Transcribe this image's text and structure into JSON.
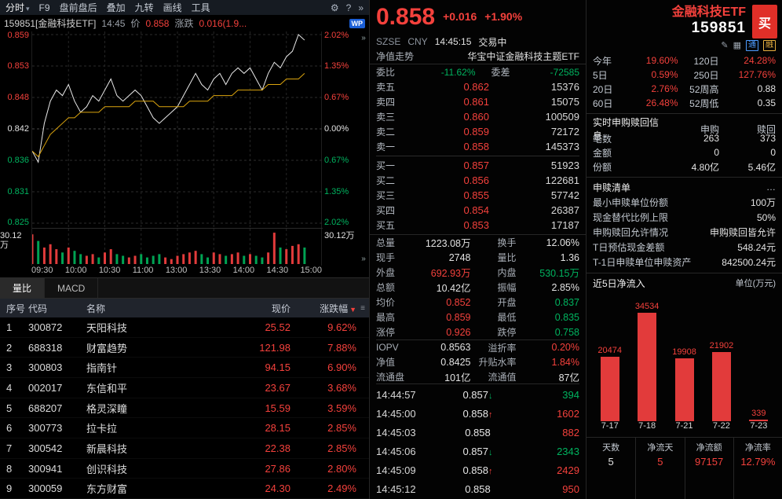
{
  "colors": {
    "up_red": "#f4413c",
    "down_green": "#00b35f",
    "yellow": "#d9a512",
    "accent_blue": "#1b5fd6",
    "toolbar_bg": "#161b22",
    "background": "#000000"
  },
  "glyphs": {
    "caret_down": "▾",
    "gear": "⚙",
    "help": "?",
    "chevrons": "»",
    "pencil": "✎",
    "grid": "▦",
    "grip": "≡",
    "sort_down": "▼",
    "dots": "…"
  },
  "toolbar": {
    "mode_label": "分时",
    "items": [
      "F9",
      "盘前盘后",
      "叠加",
      "九转",
      "画线",
      "工具"
    ]
  },
  "chart_header": {
    "code_name": "159851[金融科技ETF]",
    "time": "14:45",
    "price_label": "价",
    "price": "0.858",
    "change_label": "涨跌",
    "change": "0.016(1.9...",
    "logo": "WP"
  },
  "axis": {
    "left": [
      "0.859",
      "0.853",
      "0.848",
      "0.842",
      "0.836",
      "0.831",
      "0.825"
    ],
    "right": [
      "2.02%",
      "1.35%",
      "0.67%",
      "0.00%",
      "0.67%",
      "1.35%",
      "2.02%"
    ],
    "vol_left": "30.12万",
    "vol_right": "30.12万",
    "x": [
      "09:30",
      "10:00",
      "10:30",
      "11:00",
      "13:00",
      "13:30",
      "14:00",
      "14:30",
      "15:00"
    ]
  },
  "tabs": [
    {
      "label": "量比"
    },
    {
      "label": "MACD"
    }
  ],
  "stock_table": {
    "headers": {
      "seq": "序号",
      "code": "代码",
      "name": "名称",
      "price": "现价",
      "pct": "涨跌幅",
      "sort": "▼"
    },
    "rows": [
      {
        "seq": "1",
        "code": "300872",
        "name": "天阳科技",
        "price": "25.52",
        "pct": "9.62%"
      },
      {
        "seq": "2",
        "code": "688318",
        "name": "财富趋势",
        "price": "121.98",
        "pct": "7.88%"
      },
      {
        "seq": "3",
        "code": "300803",
        "name": "指南针",
        "price": "94.15",
        "pct": "6.90%"
      },
      {
        "seq": "4",
        "code": "002017",
        "name": "东信和平",
        "price": "23.67",
        "pct": "3.68%"
      },
      {
        "seq": "5",
        "code": "688207",
        "name": "格灵深瞳",
        "price": "15.59",
        "pct": "3.59%"
      },
      {
        "seq": "6",
        "code": "300773",
        "name": "拉卡拉",
        "price": "28.15",
        "pct": "2.85%"
      },
      {
        "seq": "7",
        "code": "300542",
        "name": "新晨科技",
        "price": "22.38",
        "pct": "2.85%"
      },
      {
        "seq": "8",
        "code": "300941",
        "name": "创识科技",
        "price": "27.86",
        "pct": "2.80%"
      },
      {
        "seq": "9",
        "code": "300059",
        "name": "东方财富",
        "price": "24.30",
        "pct": "2.49%"
      }
    ]
  },
  "quote": {
    "price": "0.858",
    "change": "+0.016",
    "pct": "+1.90%",
    "exchange": "SZSE",
    "currency": "CNY",
    "time": "14:45:15",
    "status": "交易中",
    "nav_label": "净值走势",
    "fund_name": "华宝中证金融科技主题ETF",
    "weibi_label": "委比",
    "weibi": "-11.62%",
    "weicha_label": "委差",
    "weicha": "-72585"
  },
  "order_book": {
    "asks": [
      {
        "label": "卖五",
        "price": "0.862",
        "size": "15376"
      },
      {
        "label": "卖四",
        "price": "0.861",
        "size": "15075"
      },
      {
        "label": "卖三",
        "price": "0.860",
        "size": "100509"
      },
      {
        "label": "卖二",
        "price": "0.859",
        "size": "72172"
      },
      {
        "label": "卖一",
        "price": "0.858",
        "size": "145373"
      }
    ],
    "bids": [
      {
        "label": "买一",
        "price": "0.857",
        "size": "51923"
      },
      {
        "label": "买二",
        "price": "0.856",
        "size": "122681"
      },
      {
        "label": "买三",
        "price": "0.855",
        "size": "57742"
      },
      {
        "label": "买四",
        "price": "0.854",
        "size": "26387"
      },
      {
        "label": "买五",
        "price": "0.853",
        "size": "17187"
      }
    ]
  },
  "stats": {
    "rows": [
      {
        "l1": "总量",
        "v1": "1223.08万",
        "l2": "换手",
        "v2": "12.06%"
      },
      {
        "l1": "现手",
        "v1": "2748",
        "l2": "量比",
        "v2": "1.36"
      },
      {
        "l1": "外盘",
        "v1": "692.93万",
        "l2": "内盘",
        "v2": "530.15万"
      },
      {
        "l1": "总额",
        "v1": "10.42亿",
        "l2": "振幅",
        "v2": "2.85%"
      },
      {
        "l1": "均价",
        "v1": "0.852",
        "l2": "开盘",
        "v2": "0.837"
      },
      {
        "l1": "最高",
        "v1": "0.859",
        "l2": "最低",
        "v2": "0.835"
      },
      {
        "l1": "涨停",
        "v1": "0.926",
        "l2": "跌停",
        "v2": "0.758"
      },
      {
        "l1": "IOPV",
        "v1": "0.8563",
        "l2": "溢折率",
        "v2": "0.20%"
      },
      {
        "l1": "净值",
        "v1": "0.8425",
        "l2": "升贴水率",
        "v2": "1.84%"
      },
      {
        "l1": "流通盘",
        "v1": "101亿",
        "l2": "流通值",
        "v2": "87亿"
      }
    ]
  },
  "ticks": {
    "rows": [
      {
        "time": "14:44:57",
        "price": "0.857",
        "arrow": "↓",
        "vol": "394"
      },
      {
        "time": "14:45:00",
        "price": "0.858",
        "arrow": "↑",
        "vol": "1602"
      },
      {
        "time": "14:45:03",
        "price": "0.858",
        "arrow": "",
        "vol": "882"
      },
      {
        "time": "14:45:06",
        "price": "0.857",
        "arrow": "↓",
        "vol": "2343"
      },
      {
        "time": "14:45:09",
        "price": "0.858",
        "arrow": "↑",
        "vol": "2429"
      },
      {
        "time": "14:45:12",
        "price": "0.858",
        "arrow": "",
        "vol": "950"
      }
    ]
  },
  "etf": {
    "name": "金融科技ETF",
    "code": "159851",
    "buy_label": "买",
    "badge1": "通",
    "badge2": "融"
  },
  "perf": {
    "rows": [
      {
        "l1": "今年",
        "v1": "19.60%",
        "l2": "120日",
        "v2": "24.28%"
      },
      {
        "l1": "5日",
        "v1": "0.59%",
        "l2": "250日",
        "v2": "127.76%"
      },
      {
        "l1": "20日",
        "v1": "2.76%",
        "l2": "52周高",
        "v2": "0.88"
      },
      {
        "l1": "60日",
        "v1": "26.48%",
        "l2": "52周低",
        "v2": "0.35"
      }
    ]
  },
  "subscription": {
    "title": "实时申购赎回信息",
    "col_buy": "申购",
    "col_sell": "赎回",
    "rows": [
      {
        "label": "笔数",
        "buy": "263",
        "sell": "373"
      },
      {
        "label": "金额",
        "buy": "0",
        "sell": "0"
      },
      {
        "label": "份额",
        "buy": "4.80亿",
        "sell": "5.46亿"
      }
    ]
  },
  "redeem": {
    "title": "申赎清单",
    "more": "…",
    "rows": [
      {
        "label": "最小申赎单位份额",
        "value": "100万"
      },
      {
        "label": "现金替代比例上限",
        "value": "50%"
      },
      {
        "label": "申购赎回允许情况",
        "value": "申购赎回皆允许"
      },
      {
        "label": "T日预估现金差额",
        "value": "548.24元"
      },
      {
        "label": "T-1日申赎单位申赎资产",
        "value": "842500.24元"
      }
    ]
  },
  "flow": {
    "title": "近5日净流入",
    "unit": "单位(万元)",
    "summary": [
      {
        "label": "天数",
        "value": "5"
      },
      {
        "label": "净流天",
        "value": "5"
      },
      {
        "label": "净流额",
        "value": "97157"
      },
      {
        "label": "净流率",
        "value": "12.79%"
      }
    ]
  },
  "chart_data": [
    {
      "type": "line",
      "title": "分时走势 159851 金融科技ETF",
      "x_labels": [
        "09:30",
        "10:00",
        "10:30",
        "11:00",
        "13:00",
        "13:30",
        "14:00",
        "14:30",
        "15:00"
      ],
      "prev_close": 0.842,
      "y_grid": [
        0.859,
        0.853,
        0.848,
        0.842,
        0.836,
        0.831,
        0.825
      ],
      "pct_grid": [
        "2.02%",
        "1.35%",
        "0.67%",
        "0.00%",
        "-0.67%",
        "-1.35%",
        "-2.02%"
      ],
      "minutes_covered": 225,
      "minutes_total": 240,
      "series": [
        {
          "name": "price",
          "values": [
            0.838,
            0.836,
            0.843,
            0.847,
            0.849,
            0.848,
            0.85,
            0.847,
            0.845,
            0.846,
            0.848,
            0.847,
            0.849,
            0.851,
            0.848,
            0.847,
            0.848,
            0.849,
            0.848,
            0.846,
            0.844,
            0.843,
            0.844,
            0.845,
            0.846,
            0.848,
            0.85,
            0.852,
            0.85,
            0.849,
            0.851,
            0.852,
            0.85,
            0.852,
            0.853,
            0.852,
            0.853,
            0.851,
            0.849,
            0.852,
            0.854,
            0.853,
            0.855,
            0.856,
            0.859,
            0.858
          ]
        },
        {
          "name": "avg",
          "values": [
            0.838,
            0.837,
            0.839,
            0.841,
            0.842,
            0.843,
            0.844,
            0.844,
            0.845,
            0.845,
            0.845,
            0.845,
            0.846,
            0.846,
            0.846,
            0.846,
            0.846,
            0.847,
            0.847,
            0.847,
            0.847,
            0.846,
            0.846,
            0.846,
            0.846,
            0.846,
            0.847,
            0.847,
            0.847,
            0.847,
            0.848,
            0.848,
            0.848,
            0.848,
            0.849,
            0.849,
            0.849,
            0.849,
            0.849,
            0.85,
            0.85,
            0.85,
            0.851,
            0.851,
            0.851,
            0.852
          ]
        }
      ],
      "volume_rel": [
        0.9,
        0.7,
        0.5,
        0.6,
        0.45,
        0.35,
        0.5,
        0.4,
        0.3,
        0.25,
        0.3,
        0.2,
        0.35,
        0.45,
        0.3,
        0.25,
        0.2,
        0.25,
        0.3,
        0.2,
        0.25,
        0.3,
        0.2,
        0.15,
        0.25,
        0.3,
        0.35,
        0.4,
        0.3,
        0.2,
        0.35,
        0.3,
        0.25,
        0.3,
        0.35,
        0.25,
        0.3,
        0.25,
        0.2,
        0.35,
        0.95,
        0.5,
        0.45,
        0.55,
        0.6,
        0.5
      ]
    },
    {
      "type": "bar",
      "title": "近5日净流入",
      "unit": "万元",
      "categories": [
        "7-17",
        "7-18",
        "7-21",
        "7-22",
        "7-23"
      ],
      "values": [
        20474,
        34534,
        19908,
        21902,
        339
      ]
    }
  ]
}
